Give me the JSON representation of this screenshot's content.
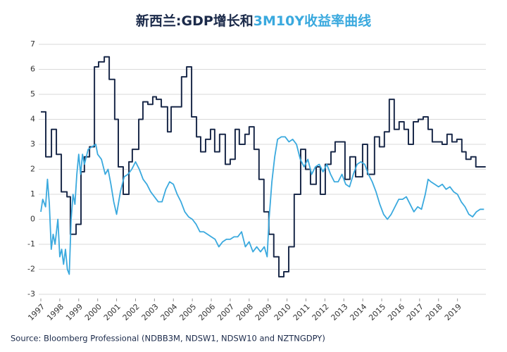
{
  "chart_data": {
    "type": "line",
    "title": [
      {
        "text": "新西兰:GDP增长和",
        "color": "#1b2a4a"
      },
      {
        "text": "3M10Y收益率曲线",
        "color": "#3aa9de"
      }
    ],
    "source": "Source: Bloomberg Professional  (NDBB3M, NDSW1, NDSW10 and NZTNGDPY)",
    "xlim": [
      1997,
      2020.5
    ],
    "xticks": [
      1997,
      1998,
      1999,
      2000,
      2001,
      2002,
      2003,
      2004,
      2005,
      2006,
      2007,
      2008,
      2009,
      2010,
      2011,
      2012,
      2013,
      2014,
      2015,
      2016,
      2017,
      2018,
      2019
    ],
    "ylim": [
      -3,
      7
    ],
    "yticks": [
      -3,
      -2,
      -1,
      0,
      1,
      2,
      3,
      4,
      5,
      6,
      7
    ],
    "grid": true,
    "series": [
      {
        "color": "#1b2a4a",
        "step": true,
        "width": 2,
        "x": [
          1997.0,
          1997.26,
          1997.56,
          1997.82,
          1998.08,
          1998.38,
          1998.56,
          1998.86,
          1999.12,
          1999.3,
          1999.57,
          1999.83,
          2000.05,
          2000.35,
          2000.61,
          2000.9,
          2001.09,
          2001.35,
          2001.65,
          2001.83,
          2002.17,
          2002.39,
          2002.65,
          2002.91,
          2003.1,
          2003.36,
          2003.69,
          2003.88,
          2004.43,
          2004.7,
          2004.96,
          2005.22,
          2005.44,
          2005.7,
          2005.96,
          2006.18,
          2006.44,
          2006.74,
          2007.0,
          2007.26,
          2007.48,
          2007.78,
          2008.0,
          2008.26,
          2008.52,
          2008.78,
          2009.04,
          2009.3,
          2009.57,
          2009.83,
          2010.09,
          2010.38,
          2010.72,
          2010.98,
          2011.24,
          2011.54,
          2011.76,
          2012.02,
          2012.32,
          2012.54,
          2013.06,
          2013.32,
          2013.62,
          2013.99,
          2014.25,
          2014.62,
          2014.88,
          2015.14,
          2015.4,
          2015.66,
          2015.92,
          2016.18,
          2016.41,
          2016.67,
          2016.93,
          2017.19,
          2017.45,
          2017.67,
          2018.19,
          2018.45,
          2018.71,
          2018.97,
          2019.23,
          2019.45,
          2019.71,
          2019.97,
          2020.49
        ],
        "values": [
          4.3,
          2.5,
          3.6,
          2.6,
          1.1,
          0.9,
          -0.6,
          -0.2,
          1.9,
          2.5,
          2.9,
          6.1,
          6.3,
          6.5,
          5.6,
          4.0,
          2.1,
          1.0,
          2.3,
          2.8,
          4.0,
          4.7,
          4.6,
          4.9,
          4.8,
          4.5,
          3.5,
          4.5,
          5.7,
          6.1,
          4.1,
          3.3,
          2.7,
          3.2,
          3.6,
          2.7,
          3.4,
          2.2,
          2.4,
          3.6,
          3.0,
          3.4,
          3.7,
          2.8,
          1.6,
          0.3,
          -0.6,
          -1.5,
          -2.3,
          -2.1,
          -1.1,
          1.0,
          2.8,
          2.0,
          1.4,
          2.1,
          1.0,
          2.2,
          2.7,
          3.1,
          1.6,
          2.5,
          1.7,
          3.0,
          1.8,
          3.3,
          2.9,
          3.5,
          4.8,
          3.6,
          3.9,
          3.6,
          3.0,
          3.9,
          4.0,
          4.1,
          3.6,
          3.1,
          3.0,
          3.4,
          3.1,
          3.2,
          2.7,
          2.4,
          2.5,
          2.1,
          2.1
        ]
      },
      {
        "color": "#3aa9de",
        "step": false,
        "width": 1.8,
        "x": [
          1997.0,
          1997.1,
          1997.25,
          1997.35,
          1997.45,
          1997.55,
          1997.65,
          1997.75,
          1997.9,
          1998.0,
          1998.1,
          1998.2,
          1998.3,
          1998.4,
          1998.5,
          1998.6,
          1998.7,
          1998.8,
          1998.9,
          1999.0,
          1999.1,
          1999.2,
          1999.3,
          1999.5,
          1999.7,
          1999.9,
          2000.0,
          2000.2,
          2000.4,
          2000.55,
          2000.7,
          2000.85,
          2001.0,
          2001.2,
          2001.4,
          2001.6,
          2001.8,
          2002.0,
          2002.2,
          2002.4,
          2002.6,
          2002.8,
          2003.0,
          2003.2,
          2003.4,
          2003.6,
          2003.8,
          2004.0,
          2004.2,
          2004.4,
          2004.6,
          2004.8,
          2005.0,
          2005.2,
          2005.4,
          2005.6,
          2005.8,
          2006.0,
          2006.2,
          2006.4,
          2006.6,
          2006.8,
          2007.0,
          2007.2,
          2007.4,
          2007.6,
          2007.8,
          2008.0,
          2008.2,
          2008.4,
          2008.6,
          2008.8,
          2008.95,
          2009.05,
          2009.2,
          2009.35,
          2009.5,
          2009.7,
          2009.9,
          2010.1,
          2010.3,
          2010.5,
          2010.7,
          2010.9,
          2011.1,
          2011.3,
          2011.5,
          2011.7,
          2011.9,
          2012.1,
          2012.3,
          2012.5,
          2012.7,
          2012.9,
          2013.1,
          2013.3,
          2013.5,
          2013.7,
          2013.9,
          2014.1,
          2014.3,
          2014.5,
          2014.7,
          2014.9,
          2015.1,
          2015.3,
          2015.5,
          2015.7,
          2015.9,
          2016.1,
          2016.3,
          2016.5,
          2016.7,
          2016.9,
          2017.1,
          2017.3,
          2017.45,
          2017.6,
          2017.8,
          2018.0,
          2018.2,
          2018.4,
          2018.6,
          2018.8,
          2019.0,
          2019.2,
          2019.4,
          2019.6,
          2019.8,
          2020.0,
          2020.2,
          2020.4
        ],
        "values": [
          0.3,
          0.8,
          0.5,
          1.6,
          0.6,
          -1.2,
          -0.6,
          -1.0,
          0.0,
          -1.5,
          -1.2,
          -1.8,
          -1.2,
          -2.0,
          -2.2,
          0.0,
          1.0,
          0.6,
          1.8,
          2.6,
          1.8,
          2.6,
          2.2,
          2.8,
          2.9,
          3.0,
          2.6,
          2.4,
          1.8,
          2.0,
          1.4,
          0.7,
          0.2,
          1.1,
          1.7,
          1.8,
          2.0,
          2.3,
          2.0,
          1.6,
          1.4,
          1.1,
          0.9,
          0.7,
          0.7,
          1.2,
          1.5,
          1.4,
          1.0,
          0.7,
          0.3,
          0.1,
          0.0,
          -0.2,
          -0.5,
          -0.5,
          -0.6,
          -0.7,
          -0.8,
          -1.1,
          -0.9,
          -0.8,
          -0.8,
          -0.7,
          -0.7,
          -0.5,
          -1.1,
          -0.9,
          -1.3,
          -1.1,
          -1.3,
          -1.1,
          -1.5,
          0.0,
          1.5,
          2.5,
          3.2,
          3.3,
          3.3,
          3.1,
          3.2,
          3.0,
          2.4,
          2.1,
          2.4,
          1.8,
          2.1,
          2.2,
          1.9,
          2.2,
          1.8,
          1.5,
          1.5,
          1.8,
          1.4,
          1.3,
          1.8,
          2.2,
          2.3,
          2.2,
          1.8,
          1.5,
          1.1,
          0.6,
          0.2,
          0.0,
          0.2,
          0.5,
          0.8,
          0.8,
          0.9,
          0.6,
          0.3,
          0.5,
          0.4,
          1.0,
          1.6,
          1.5,
          1.4,
          1.3,
          1.4,
          1.2,
          1.3,
          1.1,
          1.0,
          0.7,
          0.5,
          0.2,
          0.1,
          0.3,
          0.4,
          0.4
        ]
      }
    ]
  }
}
